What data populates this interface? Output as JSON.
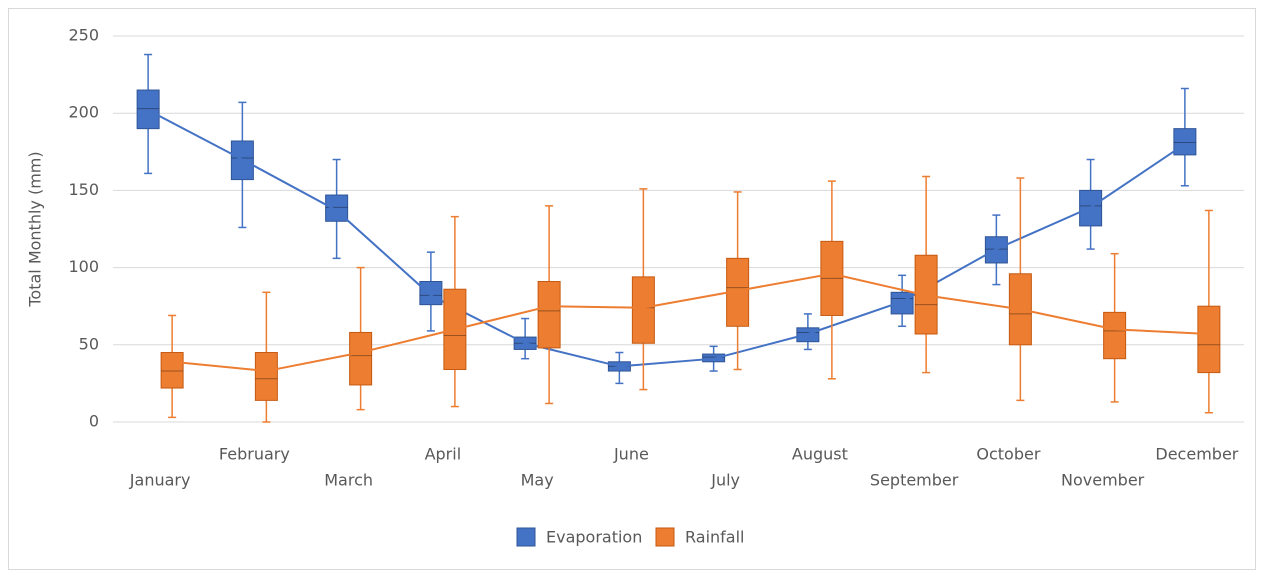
{
  "chart_data": {
    "type": "box",
    "ylabel": "Total Monthly (mm)",
    "categories": [
      "January",
      "February",
      "March",
      "April",
      "May",
      "June",
      "July",
      "August",
      "September",
      "October",
      "November",
      "December"
    ],
    "ylim": [
      0,
      250
    ],
    "yticks": [
      0,
      50,
      100,
      150,
      200,
      250
    ],
    "grid": true,
    "legend": "bottom",
    "series": [
      {
        "name": "Evaporation",
        "color": "#4472c4",
        "min": [
          161,
          126,
          106,
          59,
          41,
          25,
          33,
          47,
          62,
          89,
          112,
          153
        ],
        "q1": [
          190,
          157,
          130,
          76,
          47,
          33,
          39,
          52,
          70,
          103,
          127,
          173
        ],
        "median": [
          203,
          171,
          139,
          82,
          51,
          36,
          42,
          58,
          80,
          112,
          140,
          181
        ],
        "q3": [
          215,
          182,
          147,
          91,
          55,
          39,
          44,
          61,
          84,
          120,
          150,
          190
        ],
        "max": [
          238,
          207,
          170,
          110,
          67,
          45,
          49,
          70,
          95,
          134,
          170,
          216
        ],
        "mean": [
          202,
          170,
          137,
          82,
          51,
          36,
          41,
          57,
          78,
          112,
          139,
          180
        ]
      },
      {
        "name": "Rainfall",
        "color": "#ed7d31",
        "min": [
          3,
          0,
          8,
          10,
          12,
          21,
          34,
          28,
          32,
          14,
          13,
          6
        ],
        "q1": [
          22,
          14,
          24,
          34,
          48,
          51,
          62,
          69,
          57,
          50,
          41,
          32
        ],
        "median": [
          33,
          28,
          43,
          56,
          72,
          74,
          87,
          93,
          76,
          70,
          59,
          50
        ],
        "q3": [
          45,
          45,
          58,
          86,
          91,
          94,
          106,
          117,
          108,
          96,
          71,
          75
        ],
        "max": [
          69,
          84,
          100,
          133,
          140,
          151,
          149,
          156,
          159,
          158,
          109,
          137
        ],
        "mean": [
          39,
          33,
          45,
          60,
          75,
          74,
          85,
          96,
          82,
          73,
          60,
          57
        ]
      }
    ]
  }
}
